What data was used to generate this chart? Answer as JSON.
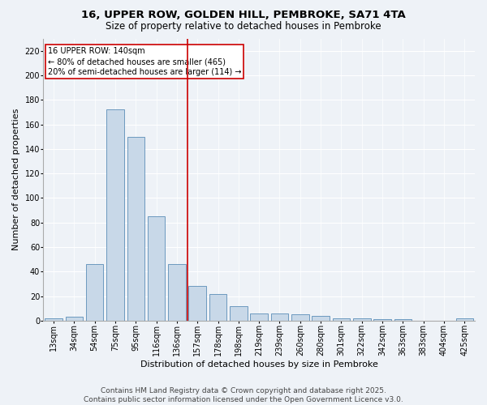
{
  "title_line1": "16, UPPER ROW, GOLDEN HILL, PEMBROKE, SA71 4TA",
  "title_line2": "Size of property relative to detached houses in Pembroke",
  "xlabel": "Distribution of detached houses by size in Pembroke",
  "ylabel": "Number of detached properties",
  "categories": [
    "13sqm",
    "34sqm",
    "54sqm",
    "75sqm",
    "95sqm",
    "116sqm",
    "136sqm",
    "157sqm",
    "178sqm",
    "198sqm",
    "219sqm",
    "239sqm",
    "260sqm",
    "280sqm",
    "301sqm",
    "322sqm",
    "342sqm",
    "363sqm",
    "383sqm",
    "404sqm",
    "425sqm"
  ],
  "values": [
    2,
    3,
    46,
    172,
    150,
    85,
    46,
    28,
    22,
    12,
    6,
    6,
    5,
    4,
    2,
    2,
    1,
    1,
    0,
    0,
    2
  ],
  "bar_color": "#c8d8e8",
  "bar_edge_color": "#5b8db8",
  "vline_x_index": 6,
  "vline_color": "#cc0000",
  "annotation_title": "16 UPPER ROW: 140sqm",
  "annotation_line2": "← 80% of detached houses are smaller (465)",
  "annotation_line3": "20% of semi-detached houses are larger (114) →",
  "annotation_box_color": "#cc0000",
  "annotation_bg": "#ffffff",
  "ylim": [
    0,
    230
  ],
  "yticks": [
    0,
    20,
    40,
    60,
    80,
    100,
    120,
    140,
    160,
    180,
    200,
    220
  ],
  "footer_line1": "Contains HM Land Registry data © Crown copyright and database right 2025.",
  "footer_line2": "Contains public sector information licensed under the Open Government Licence v3.0.",
  "bg_color": "#eef2f7",
  "plot_bg_color": "#eef2f7",
  "title_fontsize": 9.5,
  "subtitle_fontsize": 8.5,
  "tick_fontsize": 7,
  "label_fontsize": 8,
  "footer_fontsize": 6.5,
  "annotation_fontsize": 7,
  "ylabel_fontsize": 8
}
